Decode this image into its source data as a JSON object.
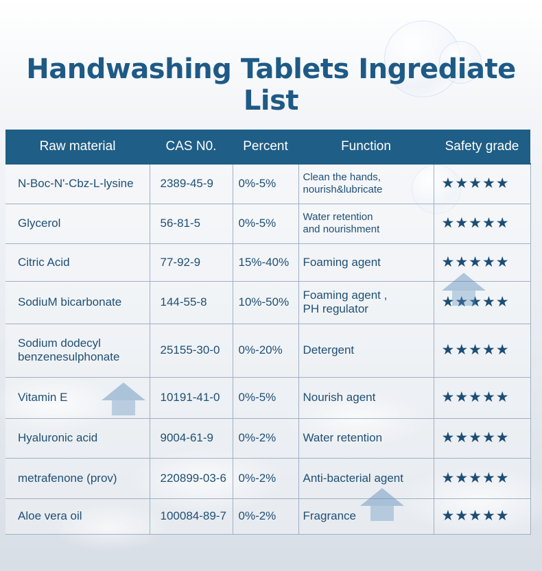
{
  "title": "Handwashing Tablets Ingrediate List",
  "columns": [
    "Raw material",
    "CAS N0.",
    "Percent",
    "Function",
    "Safety grade"
  ],
  "rating_icon": "star-icon",
  "rows": [
    {
      "material": [
        "N-Boc-N'-Cbz-L-lysine"
      ],
      "cas": "2389-45-9",
      "percent": "0%-5%",
      "function": [
        "Clean the hands,",
        "nourish&lubricate"
      ],
      "stars": "★★★★★",
      "rating": 5
    },
    {
      "material": [
        "Glycerol"
      ],
      "cas": "56-81-5",
      "percent": "0%-5%",
      "function": [
        "Water retention",
        "and nourishment"
      ],
      "stars": "★★★★★",
      "rating": 5
    },
    {
      "material": [
        "Citric Acid"
      ],
      "cas": "77-92-9",
      "percent": "15%-40%",
      "function": [
        "Foaming agent"
      ],
      "stars": "★★★★★",
      "rating": 5
    },
    {
      "material": [
        "SodiuM bicarbonate"
      ],
      "cas": "144-55-8",
      "percent": "10%-50%",
      "function": [
        "Foaming agent ,",
        "PH regulator"
      ],
      "stars": "★★★★★",
      "rating": 5
    },
    {
      "material": [
        "Sodium dodecyl",
        "benzenesulphonate"
      ],
      "cas": "25155-30-0",
      "percent": "0%-20%",
      "function": [
        "Detergent"
      ],
      "stars": "★★★★★",
      "rating": 5
    },
    {
      "material": [
        "Vitamin E"
      ],
      "cas": "10191-41-0",
      "percent": "0%-5%",
      "function": [
        "Nourish agent"
      ],
      "stars": "★★★★★",
      "rating": 5
    },
    {
      "material": [
        "Hyaluronic acid"
      ],
      "cas": "9004-61-9",
      "percent": "0%-2%",
      "function": [
        "Water retention"
      ],
      "stars": "★★★★★",
      "rating": 5
    },
    {
      "material": [
        "metrafenone (prov)"
      ],
      "cas": "220899-03-6",
      "percent": "0%-2%",
      "function": [
        "Anti-bacterial agent"
      ],
      "stars": "★★★★★",
      "rating": 5
    },
    {
      "material": [
        "Aloe vera oil"
      ],
      "cas": "100084-89-7",
      "percent": "0%-2%",
      "function": [
        "Fragrance"
      ],
      "stars": "★★★★★",
      "rating": 5
    }
  ]
}
